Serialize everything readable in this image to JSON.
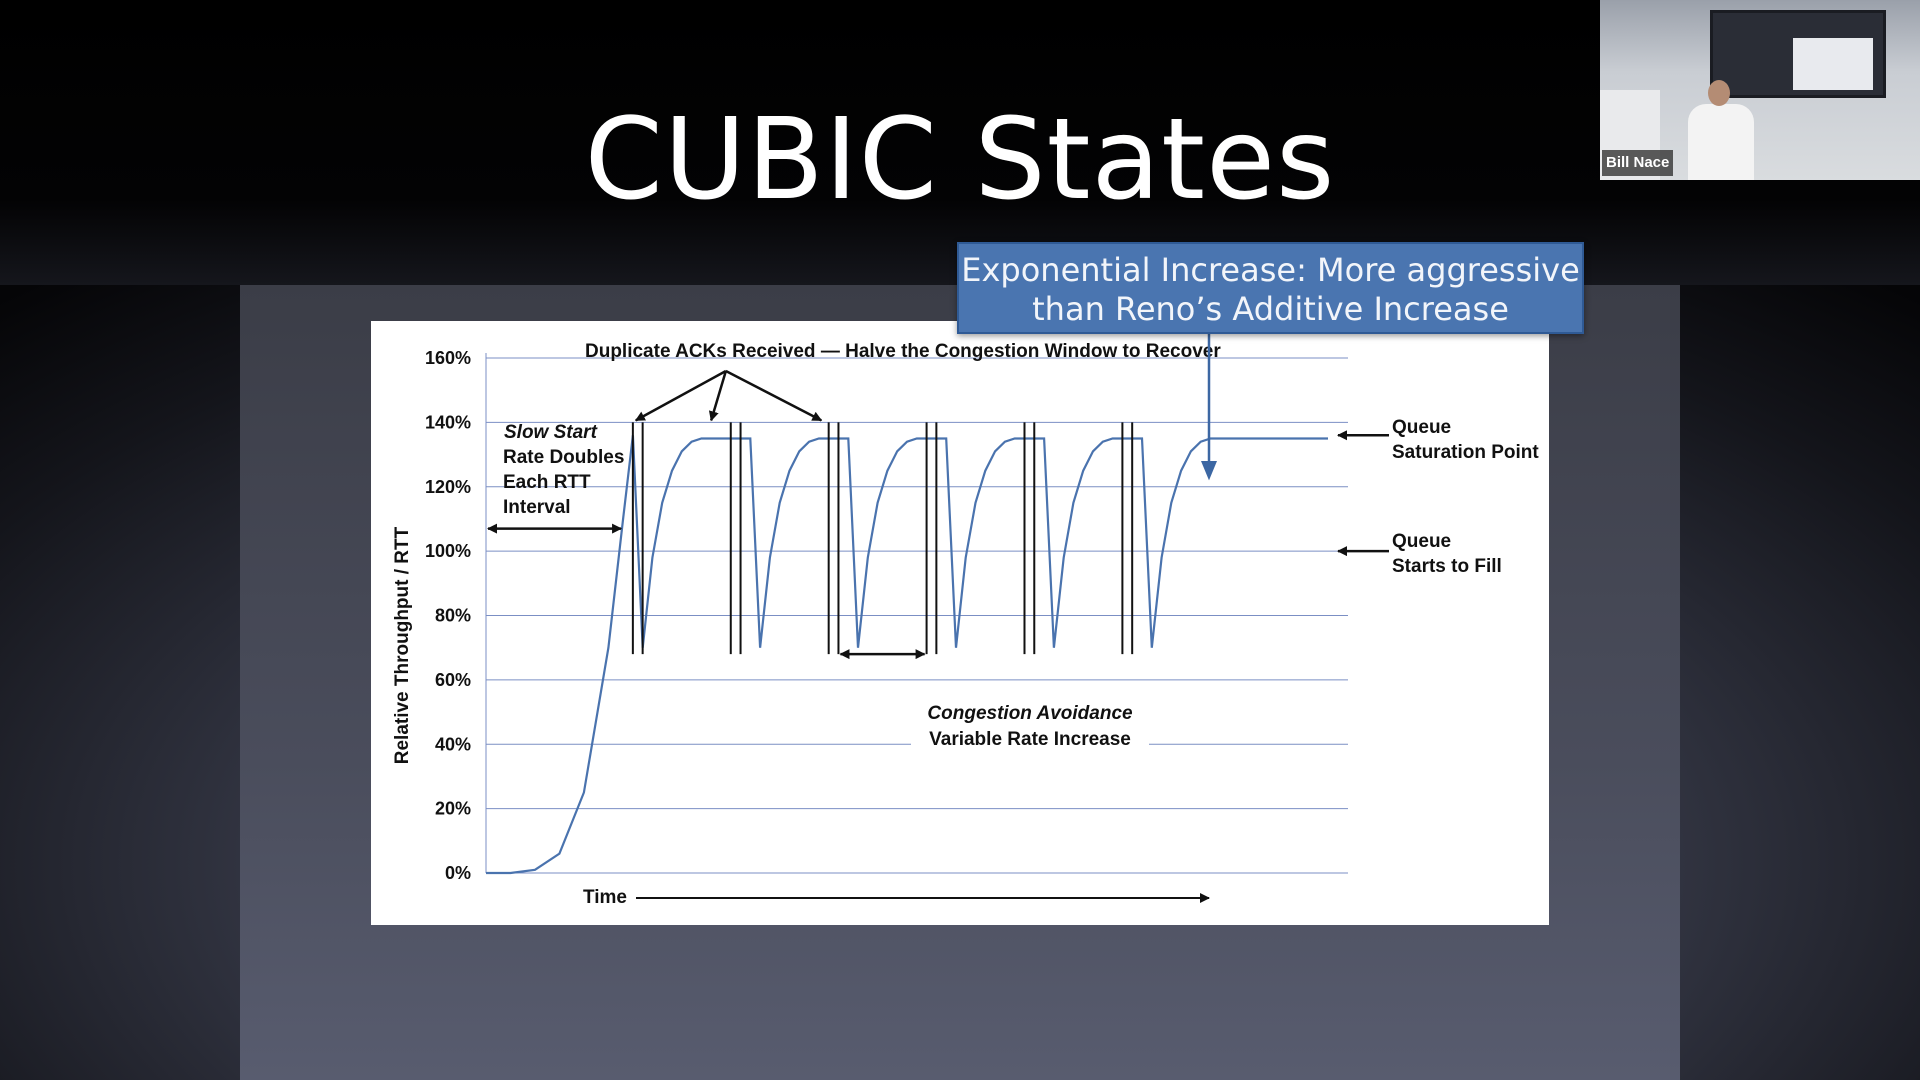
{
  "slide": {
    "title": "CUBIC States",
    "callout_line1": "Exponential Increase: More aggressive",
    "callout_line2": "than Reno’s Additive Increase"
  },
  "video_tile": {
    "speaker_name": "Bill Nace"
  },
  "colors": {
    "callout_bg": "#4a75b0",
    "curve": "#4a73ae",
    "grid": "#7b8fc4"
  },
  "chart_data": {
    "type": "line",
    "ylabel": "Relative Throughput / RTT",
    "xlabel": "Time",
    "y_ticks": [
      "0%",
      "20%",
      "40%",
      "60%",
      "80%",
      "100%",
      "120%",
      "140%",
      "160%"
    ],
    "ylim": [
      0,
      160
    ],
    "grid": true,
    "series": [
      {
        "values_description_only": false,
        "x": [
          0,
          5,
          10,
          15,
          20,
          25,
          28,
          30,
          32,
          34,
          36,
          38,
          40,
          42,
          44,
          46,
          48,
          50,
          52,
          54,
          56,
          58,
          60,
          62,
          64,
          66,
          68,
          70,
          72,
          74,
          76,
          78,
          80,
          82,
          84,
          86,
          88,
          90,
          92,
          94,
          96,
          98,
          100,
          102,
          104,
          106,
          108,
          110,
          112,
          114,
          116,
          118,
          120,
          122,
          124,
          126,
          128,
          130,
          132,
          134,
          136,
          138,
          140,
          142,
          144,
          146,
          148,
          150,
          152,
          154,
          156,
          158,
          160,
          162,
          164,
          166,
          168,
          170,
          172
        ],
        "y": [
          0,
          0,
          1,
          6,
          25,
          70,
          110,
          136,
          70,
          98,
          115,
          125,
          131,
          134,
          135,
          135,
          135,
          135,
          135,
          135,
          70,
          98,
          115,
          125,
          131,
          134,
          135,
          135,
          135,
          135,
          70,
          98,
          115,
          125,
          131,
          134,
          135,
          135,
          135,
          135,
          70,
          98,
          115,
          125,
          131,
          134,
          135,
          135,
          135,
          135,
          70,
          98,
          115,
          125,
          131,
          134,
          135,
          135,
          135,
          135,
          70,
          98,
          115,
          125,
          131,
          134,
          135,
          135,
          135,
          135,
          135,
          135,
          135,
          135,
          135,
          135,
          135,
          135,
          135
        ]
      }
    ],
    "annotations": {
      "top": "Duplicate ACKs Received — Halve the Congestion Window to Recover",
      "slow_start_1": "Slow Start",
      "slow_start_2": "Rate Doubles",
      "slow_start_3": "Each RTT",
      "slow_start_4": "Interval",
      "queue_sat_1": "Queue",
      "queue_sat_2": "Saturation Point",
      "queue_fill_1": "Queue",
      "queue_fill_2": "Starts to Fill",
      "ca_1": "Congestion Avoidance",
      "ca_2": "Variable Rate Increase"
    }
  }
}
